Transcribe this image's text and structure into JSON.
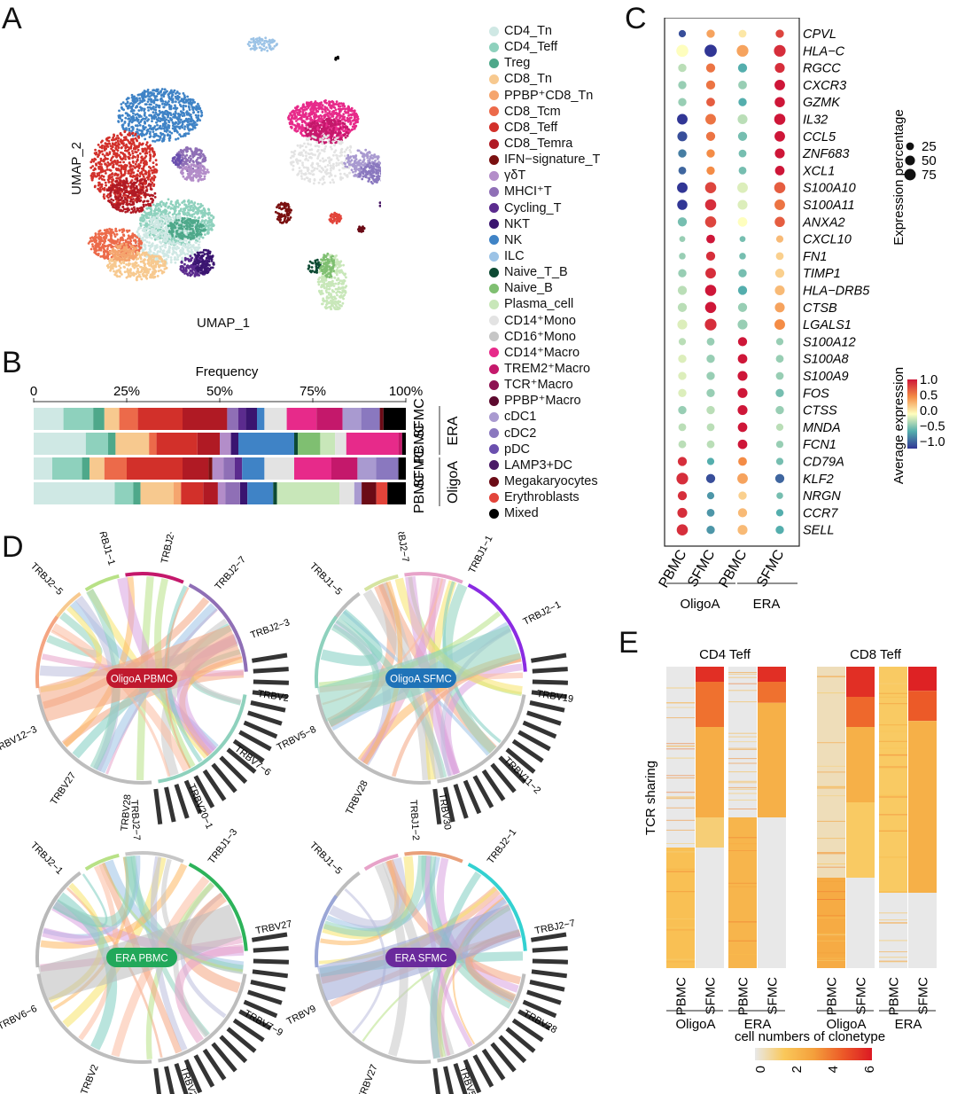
{
  "panels": {
    "A": "A",
    "B": "B",
    "C": "C",
    "D": "D",
    "E": "E"
  },
  "colors": {
    "CD4_Tn": "#cfe8e4",
    "CD4_Teff": "#8ed1bd",
    "Treg": "#4ea88a",
    "CD8_Tn": "#f7c98f",
    "PPBP+CD8_Tn": "#f5a56e",
    "CD8_Tcm": "#ec6a4a",
    "CD8_Teff": "#d2302a",
    "CD8_Temra": "#b01a24",
    "IFN-signature_T": "#7a1010",
    "gdT": "#b38dc9",
    "MHCI+T": "#8f6fb6",
    "Cycling_T": "#5b2b8e",
    "NKT": "#3a1570",
    "NK": "#3f83c6",
    "ILC": "#9cc3e6",
    "Naive_T_B": "#0d4a33",
    "Naive_B": "#7fbf71",
    "Plasma_cell": "#c8e7b9",
    "CD14+Mono": "#e3e3e3",
    "CD16+Mono": "#c6c6c6",
    "CD14+Macro": "#e72a8a",
    "TREM2+Macro": "#c4186b",
    "TCR+Macro": "#8d1152",
    "PPBP+Macro": "#5c0a2e",
    "cDC1": "#a99ad0",
    "cDC2": "#8a78bf",
    "pDC": "#6a4fae",
    "LAMP3+DC": "#4a1966",
    "Megakaryocytes": "#6b0b16",
    "Erythroblasts": "#e2443a",
    "Mixed": "#000000"
  },
  "panelA": {
    "xlabel": "UMAP_1",
    "ylabel": "UMAP_2"
  },
  "legend": [
    {
      "key": "CD4_Tn",
      "label": "CD4_Tn"
    },
    {
      "key": "CD4_Teff",
      "label": "CD4_Teff"
    },
    {
      "key": "Treg",
      "label": "Treg"
    },
    {
      "key": "CD8_Tn",
      "label": "CD8_Tn"
    },
    {
      "key": "PPBP+CD8_Tn",
      "label": "PPBP⁺CD8_Tn"
    },
    {
      "key": "CD8_Tcm",
      "label": "CD8_Tcm"
    },
    {
      "key": "CD8_Teff",
      "label": "CD8_Teff"
    },
    {
      "key": "CD8_Temra",
      "label": "CD8_Temra"
    },
    {
      "key": "IFN-signature_T",
      "label": "IFN−signature_T"
    },
    {
      "key": "gdT",
      "label": "γδT"
    },
    {
      "key": "MHCI+T",
      "label": "MHCI⁺T"
    },
    {
      "key": "Cycling_T",
      "label": "Cycling_T"
    },
    {
      "key": "NKT",
      "label": "NKT"
    },
    {
      "key": "NK",
      "label": "NK"
    },
    {
      "key": "ILC",
      "label": "ILC"
    },
    {
      "key": "Naive_T_B",
      "label": "Naive_T_B"
    },
    {
      "key": "Naive_B",
      "label": "Naive_B"
    },
    {
      "key": "Plasma_cell",
      "label": "Plasma_cell"
    },
    {
      "key": "CD14+Mono",
      "label": "CD14⁺Mono"
    },
    {
      "key": "CD16+Mono",
      "label": "CD16⁺Mono"
    },
    {
      "key": "CD14+Macro",
      "label": "CD14⁺Macro"
    },
    {
      "key": "TREM2+Macro",
      "label": "TREM2⁺Macro"
    },
    {
      "key": "TCR+Macro",
      "label": "TCR⁺Macro"
    },
    {
      "key": "PPBP+Macro",
      "label": "PPBP⁺Macro"
    },
    {
      "key": "cDC1",
      "label": "cDC1"
    },
    {
      "key": "cDC2",
      "label": "cDC2"
    },
    {
      "key": "pDC",
      "label": "pDC"
    },
    {
      "key": "LAMP3+DC",
      "label": "LAMP3+DC"
    },
    {
      "key": "Megakaryocytes",
      "label": "Megakaryocytes"
    },
    {
      "key": "Erythroblasts",
      "label": "Erythroblasts"
    },
    {
      "key": "Mixed",
      "label": "Mixed"
    }
  ],
  "chart_data": [
    {
      "id": "B",
      "type": "bar",
      "orientation": "horizontal",
      "stacked": true,
      "title": "Frequency",
      "xticks": [
        "0",
        "25%",
        "50%",
        "75%",
        "100%"
      ],
      "xlim": [
        0,
        100
      ],
      "rows": [
        {
          "label": "SFMC",
          "group": "ERA",
          "segments": [
            [
              "CD4_Tn",
              8
            ],
            [
              "CD4_Teff",
              8
            ],
            [
              "Treg",
              3
            ],
            [
              "CD8_Tn",
              4
            ],
            [
              "CD8_Tcm",
              5
            ],
            [
              "CD8_Teff",
              12
            ],
            [
              "CD8_Temra",
              12
            ],
            [
              "MHCI+T",
              3
            ],
            [
              "Cycling_T",
              2
            ],
            [
              "NKT",
              3
            ],
            [
              "NK",
              2
            ],
            [
              "CD14+Mono",
              6
            ],
            [
              "CD14+Macro",
              8
            ],
            [
              "TREM2+Macro",
              7
            ],
            [
              "cDC1",
              5
            ],
            [
              "cDC2",
              5
            ],
            [
              "Megakaryocytes",
              1
            ],
            [
              "Mixed",
              6
            ]
          ]
        },
        {
          "label": "PBMC",
          "group": "ERA",
          "segments": [
            [
              "CD4_Tn",
              14
            ],
            [
              "CD4_Teff",
              6
            ],
            [
              "Treg",
              2
            ],
            [
              "CD8_Tn",
              9
            ],
            [
              "CD8_Tcm",
              2
            ],
            [
              "CD8_Teff",
              11
            ],
            [
              "CD8_Temra",
              6
            ],
            [
              "gdT",
              3
            ],
            [
              "NKT",
              2
            ],
            [
              "NK",
              15
            ],
            [
              "Naive_T_B",
              1
            ],
            [
              "Naive_B",
              6
            ],
            [
              "Plasma_cell",
              4
            ],
            [
              "CD14+Mono",
              3
            ],
            [
              "CD14+Macro",
              14
            ],
            [
              "TREM2+Macro",
              1
            ],
            [
              "Mixed",
              1
            ]
          ]
        },
        {
          "label": "SFMC",
          "group": "OligoA",
          "segments": [
            [
              "CD4_Tn",
              5
            ],
            [
              "CD4_Teff",
              8
            ],
            [
              "Treg",
              2
            ],
            [
              "CD8_Tn",
              4
            ],
            [
              "CD8_Tcm",
              6
            ],
            [
              "CD8_Teff",
              15
            ],
            [
              "CD8_Temra",
              7
            ],
            [
              "IFN-signature_T",
              1
            ],
            [
              "gdT",
              3
            ],
            [
              "MHCI+T",
              3
            ],
            [
              "Cycling_T",
              2
            ],
            [
              "NK",
              6
            ],
            [
              "CD14+Mono",
              8
            ],
            [
              "CD14+Macro",
              10
            ],
            [
              "TREM2+Macro",
              7
            ],
            [
              "cDC1",
              5
            ],
            [
              "cDC2",
              6
            ],
            [
              "Mixed",
              2
            ]
          ]
        },
        {
          "label": "PBMC",
          "group": "OligoA",
          "segments": [
            [
              "CD4_Tn",
              22
            ],
            [
              "CD4_Teff",
              5
            ],
            [
              "Treg",
              2
            ],
            [
              "CD8_Tn",
              9
            ],
            [
              "PPBP+CD8_Tn",
              2
            ],
            [
              "CD8_Teff",
              6
            ],
            [
              "CD8_Temra",
              4
            ],
            [
              "gdT",
              2
            ],
            [
              "MHCI+T",
              4
            ],
            [
              "NKT",
              2
            ],
            [
              "NK",
              7
            ],
            [
              "Naive_T_B",
              1
            ],
            [
              "Plasma_cell",
              17
            ],
            [
              "CD14+Mono",
              4
            ],
            [
              "cDC1",
              2
            ],
            [
              "Megakaryocytes",
              4
            ],
            [
              "Erythroblasts",
              3
            ],
            [
              "Mixed",
              5
            ]
          ]
        }
      ]
    },
    {
      "id": "C",
      "type": "scatter",
      "subtype": "dotplot",
      "genes": [
        "CPVL",
        "HLA−C",
        "RGCC",
        "CXCR3",
        "GZMK",
        "IL32",
        "CCL5",
        "ZNF683",
        "XCL1",
        "S100A10",
        "S100A11",
        "ANXA2",
        "CXCL10",
        "FN1",
        "TIMP1",
        "HLA−DRB5",
        "CTSB",
        "LGALS1",
        "S100A12",
        "S100A8",
        "S100A9",
        "FOS",
        "CTSS",
        "MNDA",
        "FCN1",
        "CD79A",
        "KLF2",
        "NRGN",
        "CCR7",
        "SELL"
      ],
      "samples": [
        "PBMC",
        "SFMC",
        "PBMC",
        "SFMC"
      ],
      "groups": [
        {
          "label": "OligoA",
          "columns": [
            0,
            1
          ]
        },
        {
          "label": "ERA",
          "columns": [
            2,
            3
          ]
        }
      ],
      "expression": [
        [
          -0.9,
          0.4,
          0.1,
          0.8
        ],
        [
          0.0,
          -1.0,
          0.4,
          0.9
        ],
        [
          -0.2,
          0.6,
          -0.5,
          0.9
        ],
        [
          -0.3,
          0.6,
          -0.3,
          1.0
        ],
        [
          -0.3,
          0.7,
          -0.5,
          1.0
        ],
        [
          -1.0,
          0.6,
          -0.2,
          1.0
        ],
        [
          -0.9,
          0.6,
          -0.4,
          1.0
        ],
        [
          -0.7,
          0.5,
          -0.4,
          1.0
        ],
        [
          -0.8,
          0.5,
          -0.4,
          1.0
        ],
        [
          -1.0,
          0.8,
          -0.1,
          0.7
        ],
        [
          -1.0,
          0.9,
          -0.1,
          0.6
        ],
        [
          -0.4,
          0.8,
          0.0,
          0.7
        ],
        [
          -0.3,
          1.0,
          -0.4,
          0.3
        ],
        [
          -0.3,
          0.9,
          -0.4,
          0.2
        ],
        [
          -0.3,
          0.9,
          -0.4,
          0.2
        ],
        [
          -0.2,
          1.0,
          -0.5,
          0.3
        ],
        [
          -0.2,
          1.0,
          -0.3,
          0.4
        ],
        [
          -0.1,
          0.9,
          -0.3,
          0.5
        ],
        [
          -0.2,
          -0.3,
          1.0,
          -0.3
        ],
        [
          -0.1,
          -0.3,
          1.0,
          -0.3
        ],
        [
          -0.1,
          -0.3,
          1.0,
          -0.3
        ],
        [
          -0.1,
          -0.3,
          1.0,
          -0.4
        ],
        [
          -0.3,
          -0.2,
          1.0,
          -0.3
        ],
        [
          -0.2,
          -0.2,
          1.0,
          -0.2
        ],
        [
          -0.2,
          -0.2,
          1.0,
          -0.3
        ],
        [
          0.9,
          -0.5,
          0.5,
          -0.4
        ],
        [
          0.9,
          -0.9,
          0.4,
          -0.8
        ],
        [
          0.9,
          -0.6,
          0.2,
          -0.4
        ],
        [
          0.9,
          -0.6,
          0.3,
          -0.5
        ],
        [
          0.9,
          -0.6,
          0.3,
          -0.5
        ]
      ],
      "percent": [
        [
          20,
          30,
          25,
          30
        ],
        [
          85,
          90,
          80,
          80
        ],
        [
          30,
          40,
          40,
          50
        ],
        [
          30,
          40,
          35,
          60
        ],
        [
          30,
          35,
          30,
          55
        ],
        [
          60,
          60,
          50,
          70
        ],
        [
          50,
          40,
          40,
          60
        ],
        [
          30,
          30,
          25,
          50
        ],
        [
          25,
          30,
          25,
          45
        ],
        [
          60,
          70,
          60,
          70
        ],
        [
          55,
          70,
          50,
          60
        ],
        [
          40,
          70,
          45,
          55
        ],
        [
          10,
          35,
          10,
          20
        ],
        [
          15,
          40,
          15,
          25
        ],
        [
          30,
          60,
          30,
          40
        ],
        [
          40,
          70,
          40,
          50
        ],
        [
          40,
          70,
          40,
          50
        ],
        [
          50,
          80,
          50,
          60
        ],
        [
          20,
          25,
          40,
          20
        ],
        [
          30,
          30,
          45,
          25
        ],
        [
          30,
          30,
          50,
          25
        ],
        [
          30,
          30,
          50,
          30
        ],
        [
          30,
          30,
          50,
          30
        ],
        [
          25,
          25,
          45,
          20
        ],
        [
          25,
          25,
          45,
          20
        ],
        [
          40,
          20,
          35,
          20
        ],
        [
          80,
          40,
          60,
          40
        ],
        [
          40,
          20,
          30,
          15
        ],
        [
          50,
          25,
          40,
          20
        ],
        [
          70,
          30,
          50,
          30
        ]
      ],
      "size_legend": {
        "title": "Expression percentage",
        "values": [
          25,
          50,
          75
        ]
      },
      "color_legend": {
        "title": "Average expression",
        "ticks": [
          "1.0",
          "0.5",
          "0.0",
          "−0.5",
          "−1.0"
        ],
        "range": [
          -1,
          1
        ]
      }
    },
    {
      "id": "E",
      "type": "heatmap",
      "ylabel": "TCR sharing",
      "panels": [
        {
          "title": "CD4 Teff",
          "columns": [
            "PBMC",
            "SFMC",
            "PBMC",
            "SFMC"
          ],
          "column_groups": [
            "OligoA",
            "ERA"
          ]
        },
        {
          "title": "CD8 Teff",
          "columns": [
            "PBMC",
            "SFMC",
            "PBMC",
            "SFMC"
          ],
          "column_groups": [
            "OligoA",
            "ERA"
          ]
        }
      ],
      "colorbar": {
        "title": "cell numbers of clonetype",
        "ticks": [
          "0",
          "2",
          "4",
          "6"
        ],
        "range": [
          0,
          6
        ]
      }
    }
  ],
  "panelD": {
    "chords": [
      {
        "name": "OligoA PBMC",
        "label": "OligoA PBMC",
        "color": "#c0192e",
        "labels": [
          "TRBJ2−5",
          "TRBJ1−1",
          "TRBJ2−1",
          "TRBJ2−7",
          "TRBJ2−3",
          "TRBV2",
          "TRBV7−6",
          "TRBV20−1",
          "TRBV28",
          "TRBV27",
          "TRBV12−3"
        ]
      },
      {
        "name": "OligoA SFMC",
        "label": "OligoA SFMC",
        "color": "#1f73b8",
        "labels": [
          "TRBJ1−5",
          "TRBJ2−7",
          "TRBJ1−1",
          "TRBJ2−1",
          "TRBV19",
          "TRBV11−2",
          "TRBV30",
          "TRBV28",
          "TRBV5−8"
        ]
      },
      {
        "name": "ERA PBMC",
        "label": "ERA PBMC",
        "color": "#22a85a",
        "labels": [
          "TRBJ2−1",
          "TRBJ2−7",
          "TRBJ1−3",
          "TRBV27",
          "TRBV7−9",
          "TRBV28",
          "TRBV2",
          "TRBV6−6"
        ]
      },
      {
        "name": "ERA SFMC",
        "label": "ERA SFMC",
        "color": "#6a2a9c",
        "labels": [
          "TRBJ1−5",
          "TRBJ1−2",
          "TRBJ2−1",
          "TRBJ2−7",
          "TRBV28",
          "TRBV5−5",
          "TRBV27",
          "TRBV9"
        ]
      }
    ]
  }
}
